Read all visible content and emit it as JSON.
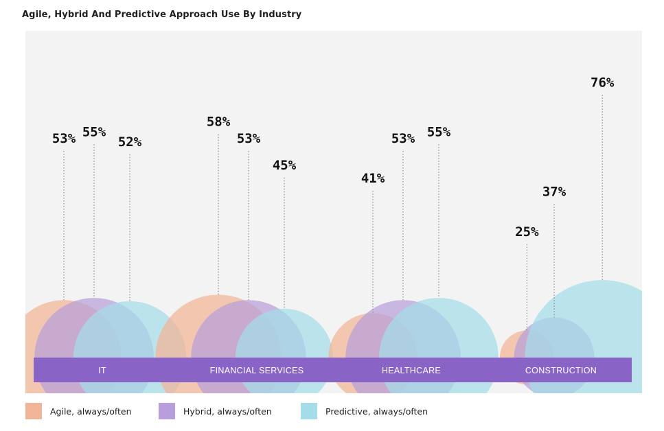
{
  "chart_data": {
    "type": "bubble-bar",
    "title": "Agile, Hybrid And Predictive Approach Use By Industry",
    "categories": [
      "IT",
      "FINANCIAL SERVICES",
      "HEALTHCARE",
      "CONSTRUCTION"
    ],
    "series": [
      {
        "name": "Agile, always/often",
        "color": "#f2b496",
        "values": [
          53,
          58,
          41,
          25
        ]
      },
      {
        "name": "Hybrid, always/often",
        "color": "#b89fdb",
        "values": [
          55,
          53,
          53,
          37
        ]
      },
      {
        "name": "Predictive, always/often",
        "color": "#a4dde7",
        "values": [
          52,
          45,
          55,
          76
        ]
      }
    ],
    "value_suffix": "%",
    "legend_position": "bottom-left",
    "colors": {
      "band": "#8a63c6",
      "panel": "#f3f3f3",
      "label": "#111111"
    }
  }
}
